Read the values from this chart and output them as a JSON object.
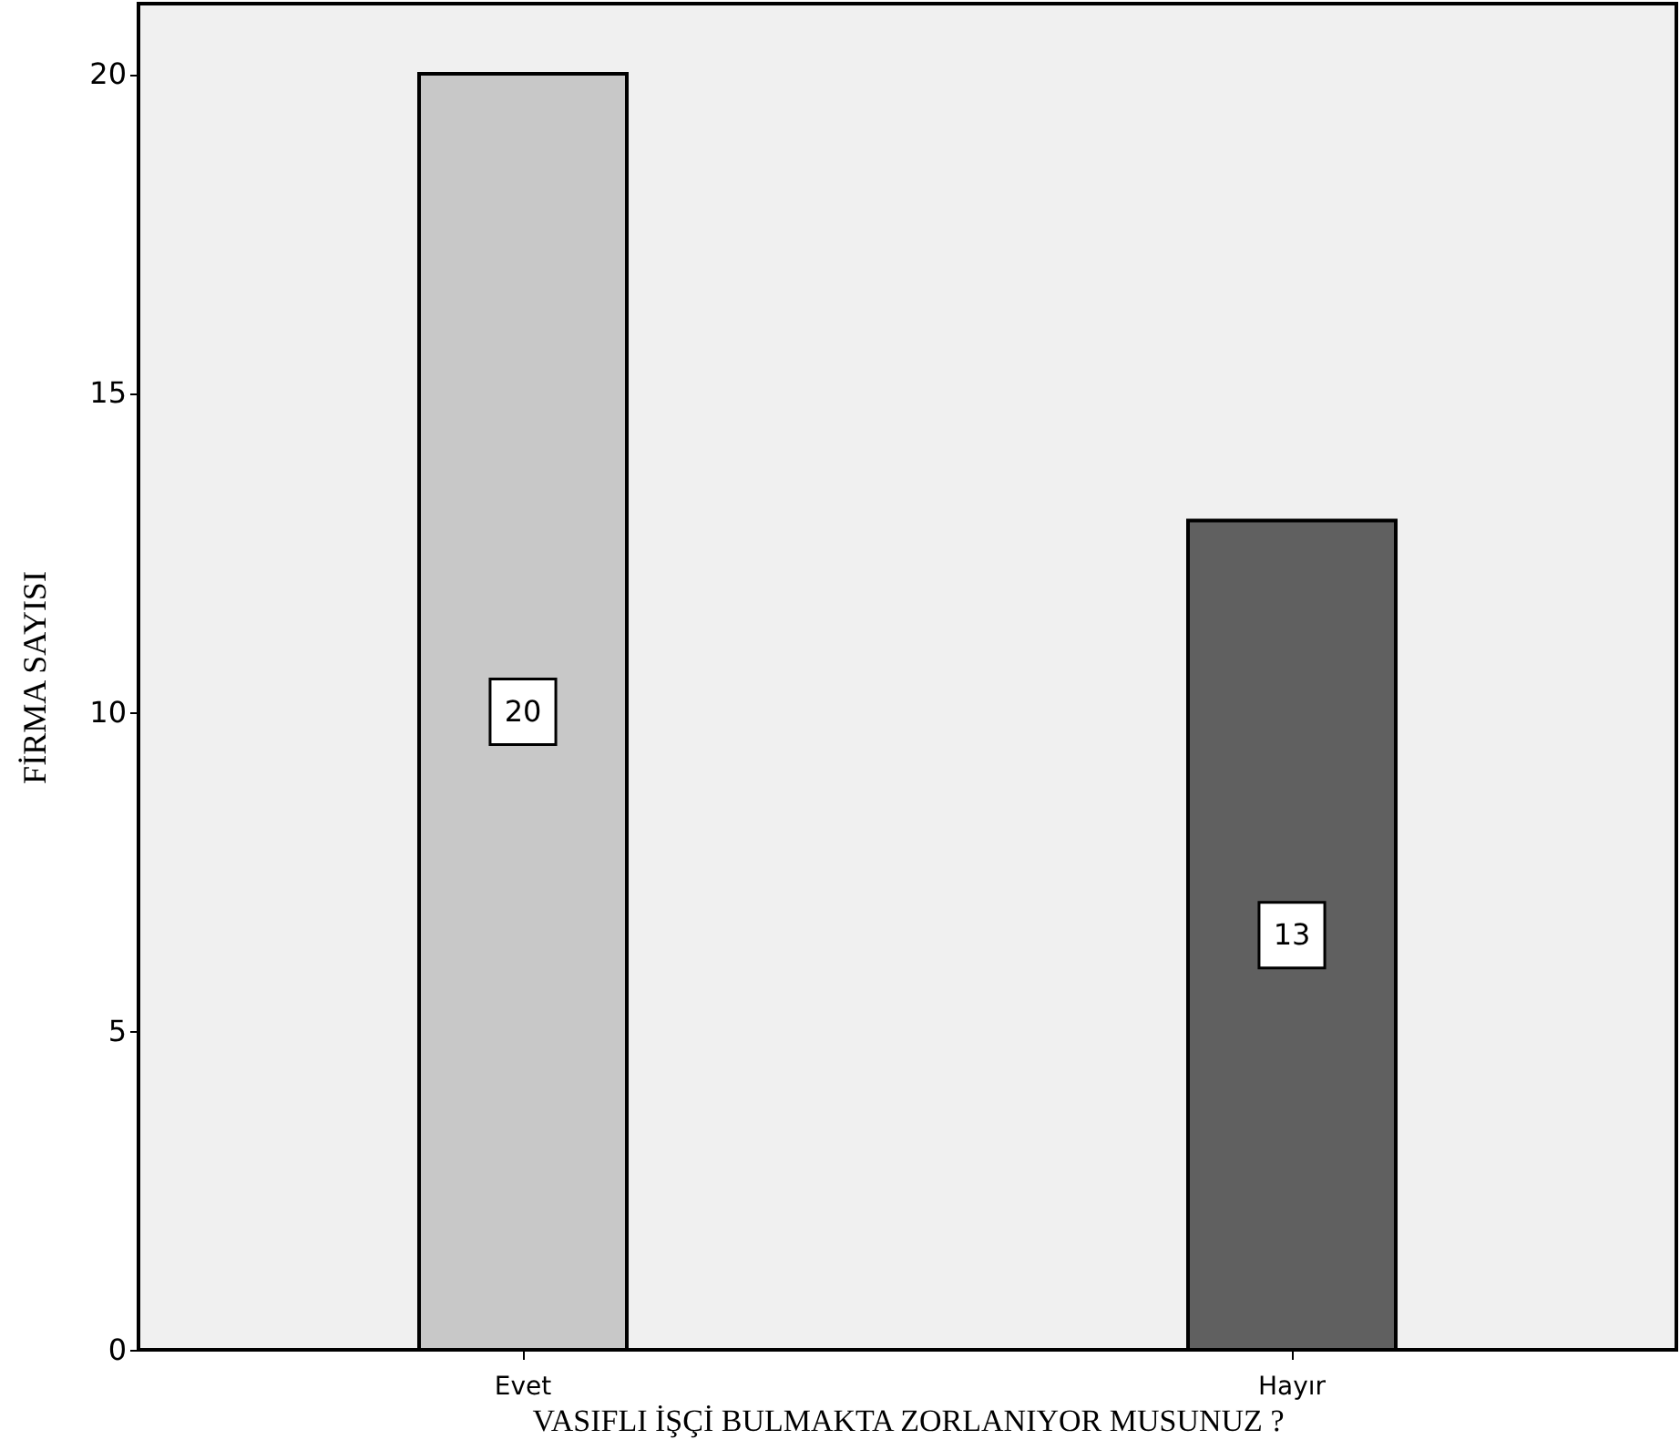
{
  "chart_data": {
    "type": "bar",
    "categories": [
      "Evet",
      "Hayır"
    ],
    "values": [
      20,
      13
    ],
    "colors": [
      "#c8c8c8",
      "#606060"
    ],
    "xlabel": "VASIFLI İŞÇİ BULMAKTA ZORLANIYOR MUSUNUZ ?",
    "ylabel": "FİRMA SAYISI",
    "ylim": [
      0,
      21.1
    ],
    "yticks": [
      0,
      5,
      10,
      15,
      20
    ],
    "data_labels": true,
    "grid": false
  }
}
